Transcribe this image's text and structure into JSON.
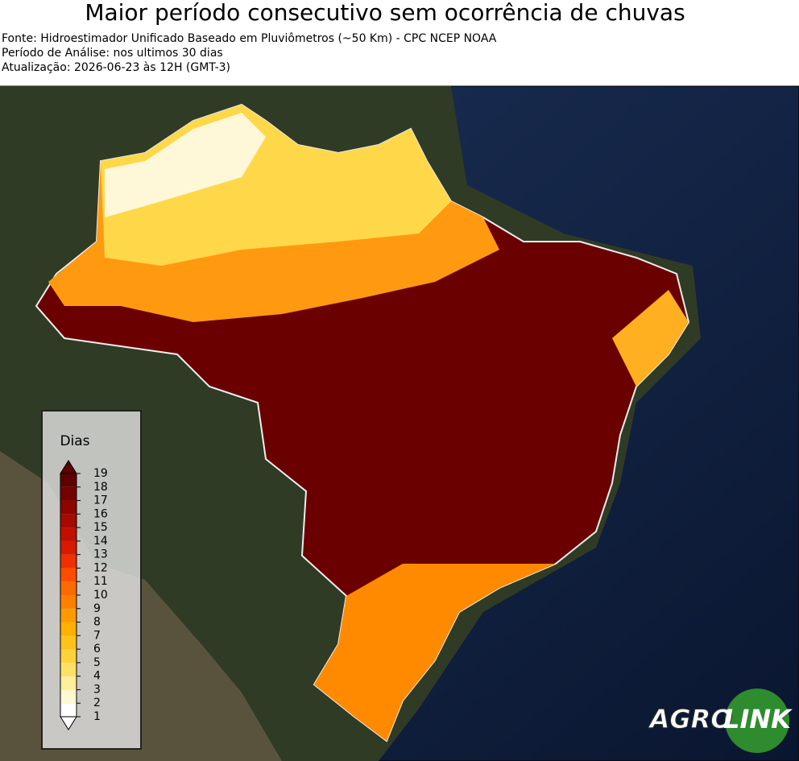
{
  "title": "Maior período consecutivo sem ocorrência de chuvas",
  "info": [
    "Fonte: Hidroestimador Unificado Baseado em Pluviômetros (~50 Km) - CPC NCEP NOAA",
    "Período de Análise: nos ultimos 30 dias",
    "Atualização: 2026-06-23 às 12H (GMT-3)"
  ],
  "colorbar": {
    "label": "Dias",
    "ticks": [
      1,
      2,
      3,
      4,
      5,
      6,
      7,
      8,
      9,
      10,
      11,
      12,
      13,
      14,
      15,
      16,
      17,
      18,
      19
    ],
    "colors": [
      "#ffffff",
      "#fff8d0",
      "#ffee9a",
      "#ffe066",
      "#ffd23a",
      "#ffc21a",
      "#ffb000",
      "#ff9900",
      "#ff8000",
      "#ff6a00",
      "#ff4d00",
      "#f03000",
      "#d81a00",
      "#c00f00",
      "#a50a00",
      "#8c0500",
      "#740200",
      "#5e0000"
    ]
  },
  "logo": {
    "left": "AGRO",
    "right": "LINK"
  }
}
